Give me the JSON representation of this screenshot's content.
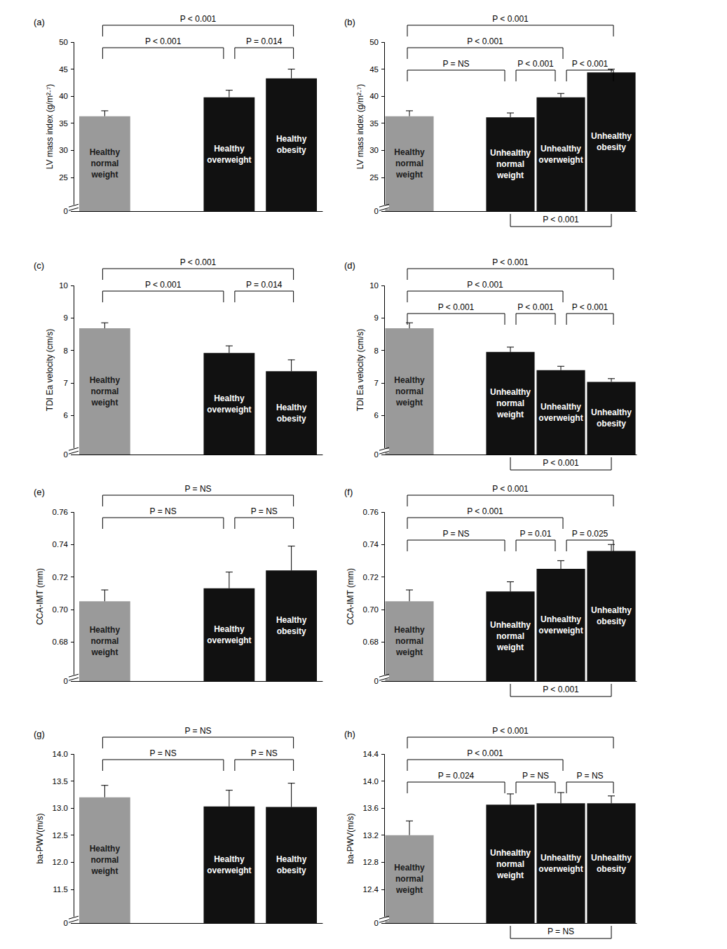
{
  "chart_data": [
    {
      "type": "bar",
      "title": "(a)",
      "ylabel": "LV mass index (g/m²·⁷)",
      "categories": [
        "Healthy\nnormal\nweight",
        null,
        "Healthy\noverweight",
        "Healthy\nobesity"
      ],
      "values": [
        36.3,
        null,
        39.8,
        43.3
      ],
      "errors": [
        1.0,
        null,
        1.3,
        1.7
      ],
      "colors": [
        "#9a9a9a",
        null,
        "#111111",
        "#111111"
      ],
      "ylim": [
        0,
        50
      ],
      "yticks": [
        0,
        25,
        30,
        35,
        40,
        45,
        50
      ],
      "tick_labels": "y",
      "annotations": [
        {
          "from": "Healthy\nnormal\nweight",
          "to": "Healthy\noverweight",
          "text": "P < 0.001",
          "position": "top"
        },
        {
          "from": "Healthy\noverweight",
          "to": "Healthy\nobesity",
          "text": "P = 0.014",
          "position": "top"
        },
        {
          "from": "Healthy\nnormal\nweight",
          "to": "Healthy\nobesity",
          "text": "P < 0.001",
          "position": "top"
        }
      ]
    },
    {
      "type": "bar",
      "title": "(b)",
      "ylabel": "LV mass index (g/m²·⁷)",
      "categories": [
        "Healthy\nnormal\nweight",
        null,
        "Unhealthy\nnormal\nweight",
        "Unhealthy\noverweight",
        "Unhealthy\nobesity"
      ],
      "values": [
        36.3,
        null,
        36.1,
        39.8,
        44.4
      ],
      "errors": [
        1.0,
        null,
        0.8,
        0.7,
        0.6
      ],
      "colors": [
        "#9a9a9a",
        null,
        "#111111",
        "#111111",
        "#111111"
      ],
      "ylim": [
        0,
        50
      ],
      "yticks": [
        0,
        25,
        30,
        35,
        40,
        45,
        50
      ],
      "tick_labels": "y",
      "annotations": [
        {
          "from": "Healthy\nnormal\nweight",
          "to": "Unhealthy\nnormal\nweight",
          "text": "P = NS",
          "position": "top"
        },
        {
          "from": "Unhealthy\nnormal\nweight",
          "to": "Unhealthy\noverweight",
          "text": "P < 0.001",
          "position": "top"
        },
        {
          "from": "Healthy\nnormal\nweight",
          "to": "Unhealthy\noverweight",
          "text": "P < 0.001",
          "position": "top"
        },
        {
          "from": "Unhealthy\noverweight",
          "to": "Unhealthy\nobesity",
          "text": "P < 0.001",
          "position": "top"
        },
        {
          "from": "Healthy\nnormal\nweight",
          "to": "Unhealthy\nobesity",
          "text": "P < 0.001",
          "position": "top"
        },
        {
          "from": "Unhealthy\nnormal\nweight",
          "to": "Unhealthy\nobesity",
          "text": "P < 0.001",
          "position": "bottom"
        }
      ]
    },
    {
      "type": "bar",
      "title": "(c)",
      "ylabel": "TDI Ea velocity (cm/s)",
      "categories": [
        "Healthy\nnormal\nweight",
        null,
        "Healthy\noverweight",
        "Healthy\nobesity"
      ],
      "values": [
        8.68,
        null,
        7.92,
        7.36
      ],
      "errors": [
        0.17,
        null,
        0.22,
        0.35
      ],
      "colors": [
        "#9a9a9a",
        null,
        "#111111",
        "#111111"
      ],
      "ylim": [
        0,
        10
      ],
      "yticks": [
        0,
        6,
        7,
        8,
        9,
        10
      ],
      "tick_labels": "y",
      "annotations": [
        {
          "from": "Healthy\nnormal\nweight",
          "to": "Healthy\noverweight",
          "text": "P < 0.001",
          "position": "top"
        },
        {
          "from": "Healthy\noverweight",
          "to": "Healthy\nobesity",
          "text": "P = 0.014",
          "position": "top"
        },
        {
          "from": "Healthy\nnormal\nweight",
          "to": "Healthy\nobesity",
          "text": "P < 0.001",
          "position": "top"
        }
      ]
    },
    {
      "type": "bar",
      "title": "(d)",
      "ylabel": "TDI Ea velocity (cm/s)",
      "categories": [
        "Healthy\nnormal\nweight",
        null,
        "Unhealthy\nnormal\nweight",
        "Unhealthy\noverweight",
        "Unhealthy\nobesity"
      ],
      "values": [
        8.68,
        null,
        7.95,
        7.39,
        7.03
      ],
      "errors": [
        0.17,
        null,
        0.15,
        0.12,
        0.1
      ],
      "colors": [
        "#9a9a9a",
        null,
        "#111111",
        "#111111",
        "#111111"
      ],
      "ylim": [
        0,
        10
      ],
      "yticks": [
        0,
        6,
        7,
        8,
        9,
        10
      ],
      "tick_labels": "y",
      "annotations": [
        {
          "from": "Healthy\nnormal\nweight",
          "to": "Unhealthy\nnormal\nweight",
          "text": "P < 0.001",
          "position": "top"
        },
        {
          "from": "Unhealthy\nnormal\nweight",
          "to": "Unhealthy\noverweight",
          "text": "P < 0.001",
          "position": "top"
        },
        {
          "from": "Unhealthy\noverweight",
          "to": "Unhealthy\nobesity",
          "text": "P < 0.001",
          "position": "top"
        },
        {
          "from": "Healthy\nnormal\nweight",
          "to": "Unhealthy\noverweight",
          "text": "P < 0.001",
          "position": "top"
        },
        {
          "from": "Healthy\nnormal\nweight",
          "to": "Unhealthy\nobesity",
          "text": "P < 0.001",
          "position": "top"
        },
        {
          "from": "Unhealthy\nnormal\nweight",
          "to": "Unhealthy\nobesity",
          "text": "P < 0.001",
          "position": "bottom"
        }
      ]
    },
    {
      "type": "bar",
      "title": "(e)",
      "ylabel": "CCA-IMT (mm)",
      "categories": [
        "Healthy\nnormal\nweight",
        null,
        "Healthy\noverweight",
        "Healthy\nobesity"
      ],
      "values": [
        0.705,
        null,
        0.713,
        0.724
      ],
      "errors": [
        0.007,
        null,
        0.01,
        0.015
      ],
      "colors": [
        "#9a9a9a",
        null,
        "#111111",
        "#111111"
      ],
      "ylim": [
        0,
        0.76
      ],
      "yticks": [
        0,
        0.68,
        {
          "value": 0.7,
          "label": "0.70"
        },
        0.72,
        0.74,
        0.76
      ],
      "tick_labels": "y",
      "annotations": [
        {
          "from": "Healthy\nnormal\nweight",
          "to": "Healthy\noverweight",
          "text": "P = NS",
          "position": "top"
        },
        {
          "from": "Healthy\noverweight",
          "to": "Healthy\nobesity",
          "text": "P = NS",
          "position": "top"
        },
        {
          "from": "Healthy\nnormal\nweight",
          "to": "Healthy\nobesity",
          "text": "P = NS",
          "position": "top"
        }
      ]
    },
    {
      "type": "bar",
      "title": "(f)",
      "ylabel": "CCA-IMT (mm)",
      "categories": [
        "Healthy\nnormal\nweight",
        null,
        "Unhealthy\nnormal\nweight",
        "Unhealthy\noverweight",
        "Unhealthy\nobesity"
      ],
      "values": [
        0.705,
        null,
        0.711,
        0.725,
        0.736
      ],
      "errors": [
        0.007,
        null,
        0.006,
        0.005,
        0.004
      ],
      "colors": [
        "#9a9a9a",
        null,
        "#111111",
        "#111111",
        "#111111"
      ],
      "ylim": [
        0,
        0.76
      ],
      "yticks": [
        0,
        0.68,
        {
          "value": 0.7,
          "label": "0.70"
        },
        0.72,
        0.74,
        0.76
      ],
      "tick_labels": "y",
      "annotations": [
        {
          "from": "Healthy\nnormal\nweight",
          "to": "Unhealthy\nnormal\nweight",
          "text": "P = NS",
          "position": "top"
        },
        {
          "from": "Unhealthy\nnormal\nweight",
          "to": "Unhealthy\noverweight",
          "text": "P = 0.01",
          "position": "top"
        },
        {
          "from": "Unhealthy\noverweight",
          "to": "Unhealthy\nobesity",
          "text": "P = 0.025",
          "position": "top"
        },
        {
          "from": "Healthy\nnormal\nweight",
          "to": "Unhealthy\noverweight",
          "text": "P < 0.001",
          "position": "top"
        },
        {
          "from": "Healthy\nnormal\nweight",
          "to": "Unhealthy\nobesity",
          "text": "P < 0.001",
          "position": "top"
        },
        {
          "from": "Unhealthy\nnormal\nweight",
          "to": "Unhealthy\nobesity",
          "text": "P < 0.001",
          "position": "bottom"
        }
      ]
    },
    {
      "type": "bar",
      "title": "(g)",
      "ylabel": "ba-PWV(m/s)",
      "categories": [
        "Healthy\nnormal\nweight",
        null,
        "Healthy\noverweight",
        "Healthy\nobesity"
      ],
      "values": [
        13.2,
        null,
        13.03,
        13.02
      ],
      "errors": [
        0.22,
        null,
        0.3,
        0.44
      ],
      "colors": [
        "#9a9a9a",
        null,
        "#111111",
        "#111111"
      ],
      "ylim": [
        0,
        14
      ],
      "yticks": [
        0,
        11.5,
        {
          "value": 12,
          "label": "12.0"
        },
        12.5,
        {
          "value": 13,
          "label": "13.0"
        },
        13.5,
        {
          "value": 14,
          "label": "14.0"
        }
      ],
      "tick_labels": "y",
      "annotations": [
        {
          "from": "Healthy\nnormal\nweight",
          "to": "Healthy\noverweight",
          "text": "P = NS",
          "position": "top"
        },
        {
          "from": "Healthy\noverweight",
          "to": "Healthy\nobesity",
          "text": "P = NS",
          "position": "top"
        },
        {
          "from": "Healthy\nnormal\nweight",
          "to": "Healthy\nobesity",
          "text": "P = NS",
          "position": "top"
        }
      ]
    },
    {
      "type": "bar",
      "title": "(h)",
      "ylabel": "ba-PWV(m/s)",
      "categories": [
        "Healthy\nnormal\nweight",
        null,
        "Unhealthy\nnormal\nweight",
        "Unhealthy\noverweight",
        "Unhealthy\nobesity"
      ],
      "values": [
        13.2,
        null,
        13.65,
        13.67,
        13.67
      ],
      "errors": [
        0.21,
        null,
        0.16,
        0.16,
        0.11
      ],
      "colors": [
        "#9a9a9a",
        null,
        "#111111",
        "#111111",
        "#111111"
      ],
      "ylim": [
        0,
        14.4
      ],
      "yticks": [
        0,
        12.4,
        12.8,
        13.2,
        13.6,
        {
          "value": 14,
          "label": "14.0"
        },
        14.4
      ],
      "tick_labels": "y",
      "annotations": [
        {
          "from": "Healthy\nnormal\nweight",
          "to": "Unhealthy\nnormal\nweight",
          "text": "P = 0.024",
          "position": "top"
        },
        {
          "from": "Unhealthy\nnormal\nweight",
          "to": "Unhealthy\noverweight",
          "text": "P = NS",
          "position": "top"
        },
        {
          "from": "Unhealthy\noverweight",
          "to": "Unhealthy\nobesity",
          "text": "P = NS",
          "position": "top"
        },
        {
          "from": "Healthy\nnormal\nweight",
          "to": "Unhealthy\noverweight",
          "text": "P < 0.001",
          "position": "top"
        },
        {
          "from": "Healthy\nnormal\nweight",
          "to": "Unhealthy\nobesity",
          "text": "P < 0.001",
          "position": "top"
        },
        {
          "from": "Unhealthy\nnormal\nweight",
          "to": "Unhealthy\nobesity",
          "text": "P = NS",
          "position": "bottom"
        }
      ]
    }
  ]
}
